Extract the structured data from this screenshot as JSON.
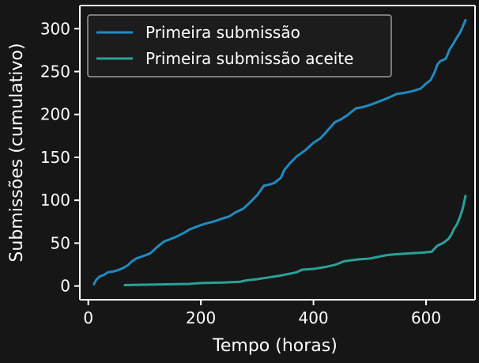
{
  "chart_data": {
    "type": "line",
    "title": "",
    "xlabel": "Tempo (horas)",
    "ylabel": "Submissões (cumulativo)",
    "xlim": [
      -15,
      687
    ],
    "ylim": [
      -16,
      327
    ],
    "xticks": [
      0,
      200,
      400,
      600
    ],
    "yticks": [
      0,
      50,
      100,
      150,
      200,
      250,
      300
    ],
    "xtick_labels": [
      "0",
      "200",
      "400",
      "600"
    ],
    "ytick_labels": [
      "0",
      "50",
      "100",
      "150",
      "200",
      "250",
      "300"
    ],
    "grid": false,
    "legend_position": "top-left",
    "background": "#161616",
    "series": [
      {
        "name": "Primeira submissão",
        "color": "#1f8bbf",
        "x": [
          10,
          14,
          20,
          28,
          35,
          45,
          55,
          62,
          70,
          78,
          85,
          98,
          110,
          125,
          135,
          155,
          170,
          180,
          192,
          200,
          210,
          222,
          235,
          250,
          262,
          275,
          285,
          300,
          312,
          320,
          330,
          342,
          348,
          358,
          370,
          385,
          400,
          412,
          422,
          438,
          448,
          460,
          475,
          490,
          500,
          512,
          520,
          535,
          548,
          560,
          575,
          590,
          600,
          608,
          615,
          620,
          625,
          635,
          642,
          648,
          655,
          660,
          665,
          670
        ],
        "y": [
          2,
          7,
          11,
          13,
          16,
          17,
          19,
          21,
          24,
          29,
          32,
          35,
          38,
          47,
          52,
          57,
          62,
          66,
          69,
          71,
          73,
          75,
          78,
          81,
          86,
          90,
          96,
          106,
          117,
          118,
          120,
          126,
          135,
          143,
          151,
          158,
          167,
          172,
          179,
          191,
          194,
          199,
          207,
          209,
          211,
          214,
          216,
          220,
          224,
          225,
          227,
          230,
          236,
          240,
          249,
          258,
          262,
          265,
          276,
          282,
          290,
          295,
          302,
          310
        ]
      },
      {
        "name": "Primeira submissão aceite",
        "color": "#2aa198",
        "x": [
          65,
          100,
          140,
          180,
          200,
          240,
          270,
          280,
          300,
          320,
          340,
          355,
          370,
          380,
          400,
          420,
          440,
          455,
          480,
          500,
          515,
          530,
          545,
          570,
          595,
          610,
          620,
          630,
          640,
          645,
          650,
          655,
          660,
          665,
          670
        ],
        "y": [
          1,
          1.5,
          2,
          2.5,
          3.5,
          4,
          5,
          6.5,
          8,
          10,
          12,
          14,
          16,
          19,
          20,
          22,
          25,
          29,
          31,
          32,
          34,
          36,
          37,
          38,
          39,
          40,
          47,
          50,
          55,
          60,
          67,
          72,
          80,
          90,
          105
        ]
      }
    ]
  }
}
